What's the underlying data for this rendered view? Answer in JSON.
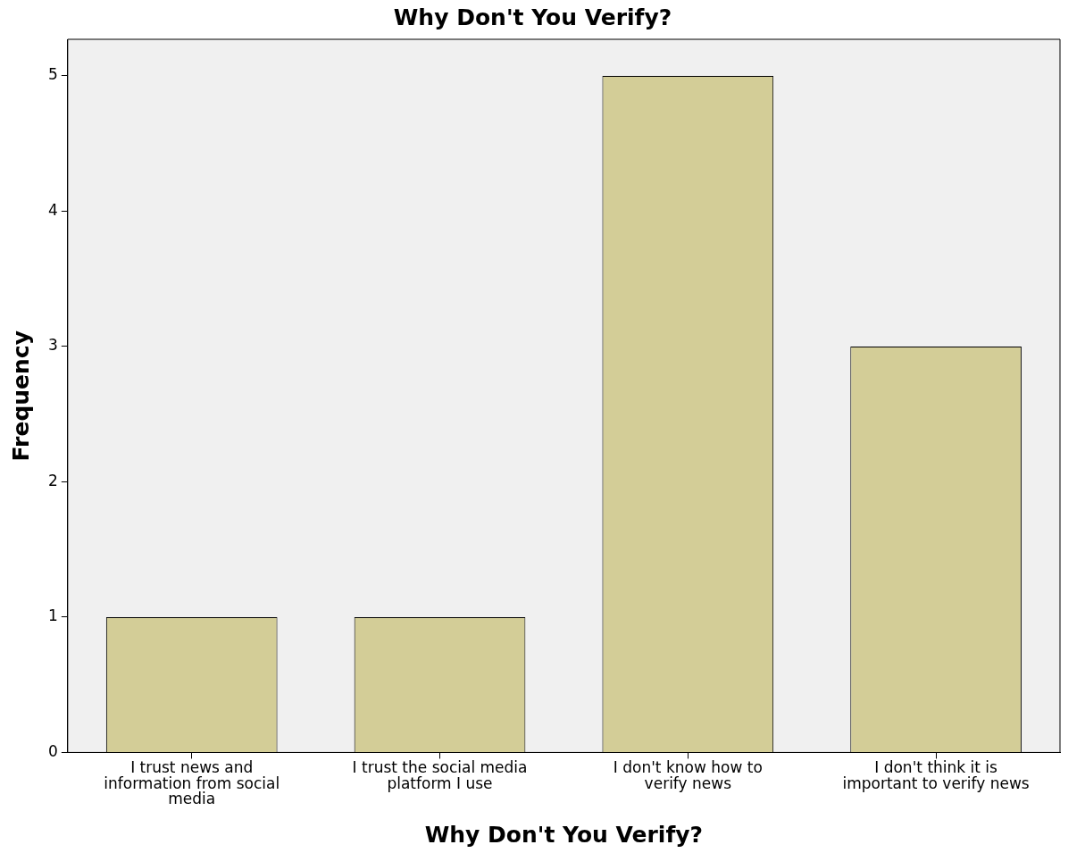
{
  "chart_data": {
    "type": "bar",
    "title": "Why Don't You Verify?",
    "xlabel": "Why Don't You Verify?",
    "ylabel": "Frequency",
    "categories": [
      "I trust news and information from social media",
      "I trust the social media platform I use",
      "I don't know how to verify news",
      "I don't think it is important to verify news"
    ],
    "values": [
      1,
      1,
      5,
      3
    ],
    "color": "#d3cd97",
    "ylim": [
      0,
      5.27
    ],
    "yticks": [
      0,
      1,
      2,
      3,
      4,
      5
    ],
    "grid": false,
    "legend": false
  }
}
